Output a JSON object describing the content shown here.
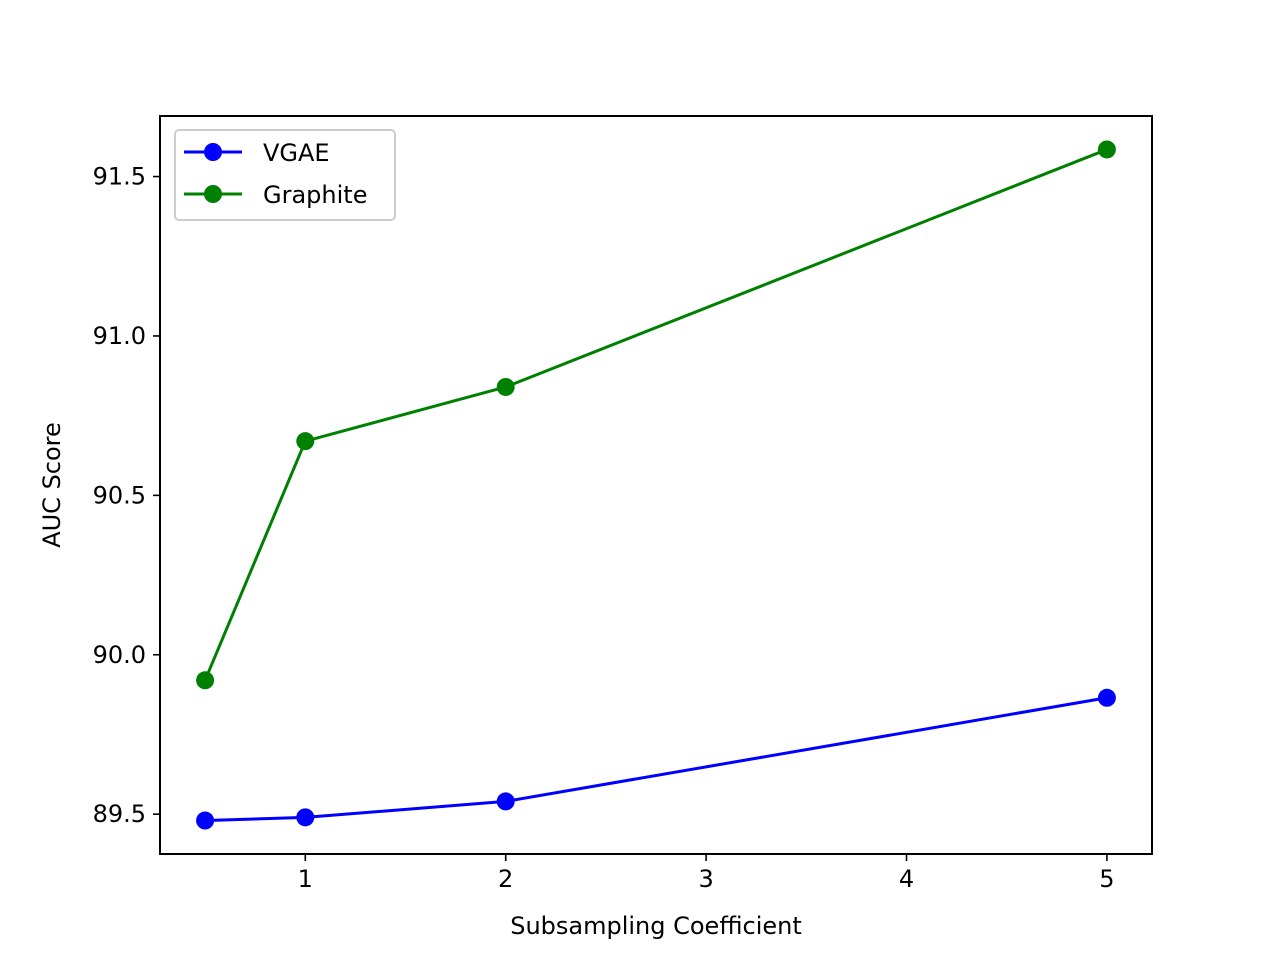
{
  "chart_data": {
    "type": "line",
    "title": "",
    "xlabel": "Subsampling Coefficient",
    "ylabel": "AUC Score",
    "xlim": [
      0.275,
      5.225
    ],
    "ylim": [
      89.375,
      91.69
    ],
    "x_ticks": [
      1,
      2,
      3,
      4,
      5
    ],
    "x_tick_labels": [
      "1",
      "2",
      "3",
      "4",
      "5"
    ],
    "y_ticks": [
      89.5,
      90.0,
      90.5,
      91.0,
      91.5
    ],
    "y_tick_labels": [
      "89.5",
      "90.0",
      "90.5",
      "91.0",
      "91.5"
    ],
    "grid": false,
    "legend_position": "top-left",
    "x": [
      0.5,
      1,
      2,
      5
    ],
    "series": [
      {
        "name": "VGAE",
        "color": "#0000ff",
        "marker": "circle",
        "values": [
          89.48,
          89.49,
          89.54,
          89.865
        ]
      },
      {
        "name": "Graphite",
        "color": "#008000",
        "marker": "circle",
        "values": [
          89.92,
          90.67,
          90.84,
          91.585
        ]
      }
    ]
  }
}
